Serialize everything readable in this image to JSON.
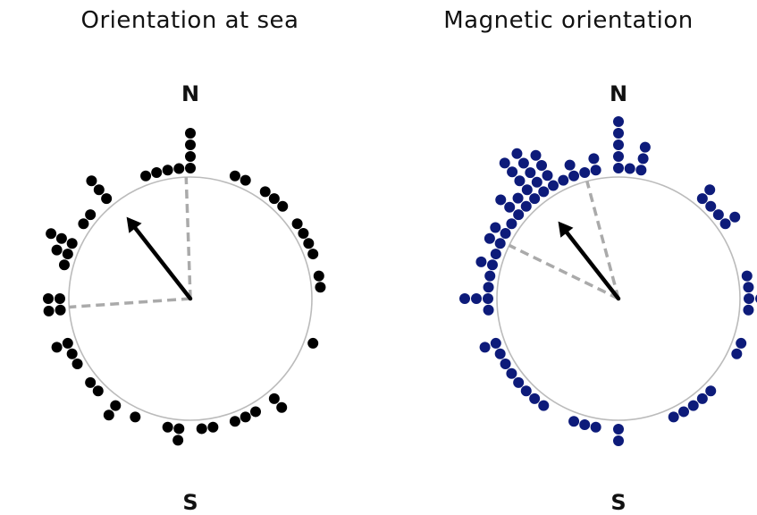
{
  "chart_data": [
    {
      "type": "scatter",
      "subtype": "circular-dot-plot",
      "title": "Orientation at sea",
      "north_label": "N",
      "south_label": "S",
      "dot_color": "#000000",
      "circle_color": "#bbbbbb",
      "ci_color": "#aaaaaa",
      "mean_direction_deg": 322,
      "mean_vector_length": 0.55,
      "confidence_interval_deg": [
        266,
        358
      ],
      "dots_deg": [
        0,
        0,
        0,
        0,
        355,
        350,
        345,
        340,
        20,
        27,
        33,
        39,
        43,
        55,
        58,
        66,
        70,
        82,
        85,
        112,
        140,
        142,
        152,
        157,
        162,
        170,
        175,
        183,
        187,
        190,
        205,
        213,
        217,
        225,
        228,
        240,
        243,
        248,
        252,
        265,
        267,
        270,
        272,
        284,
        290,
        291,
        293,
        294,
        295,
        305,
        310,
        318,
        320,
        322
      ]
    },
    {
      "type": "scatter",
      "subtype": "circular-dot-plot",
      "title": "Magnetic orientation",
      "north_label": "N",
      "south_label": "S",
      "dot_color": "#0d1b7a",
      "circle_color": "#bbbbbb",
      "ci_color": "#aaaaaa",
      "mean_direction_deg": 322,
      "mean_vector_length": 0.52,
      "confidence_interval_deg": [
        296,
        345
      ],
      "dots_deg": [
        0,
        0,
        0,
        0,
        0,
        5,
        8,
        10,
        12,
        352,
        348,
        345,
        342,
        338,
        333,
        330,
        38,
        42,
        46,
        50,
        53,
        55,
        80,
        84,
        88,
        90,
        94,
        110,
        115,
        135,
        140,
        145,
        150,
        155,
        178,
        182,
        190,
        195,
        198,
        215,
        220,
        225,
        230,
        235,
        240,
        245,
        248,
        252,
        265,
        268,
        270,
        272,
        275,
        280,
        283,
        286,
        290,
        293,
        296,
        300,
        302,
        305,
        308,
        310,
        312,
        314,
        316,
        318,
        320,
        322,
        324,
        326,
        328,
        318,
        320,
        323,
        325,
        327,
        329,
        331
      ]
    }
  ]
}
